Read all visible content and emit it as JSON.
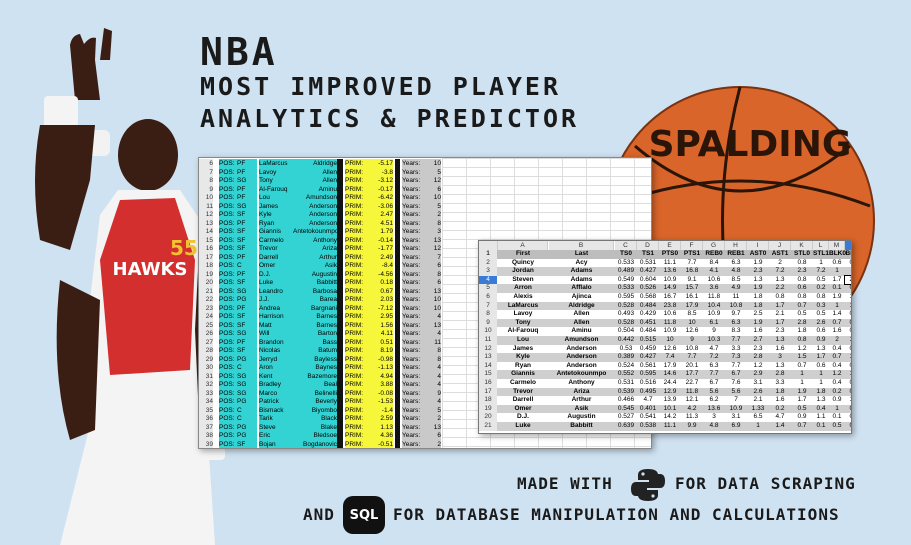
{
  "title": {
    "line1": "NBA",
    "line2": "MOST IMPROVED PLAYER",
    "line3": "ANALYTICS & PREDICTOR"
  },
  "footer": {
    "made_with": "MADE WITH",
    "data_scraping": "FOR DATA SCRAPING",
    "and": "AND",
    "sql_label": "SQL",
    "db_manip": "FOR DATABASE MANIPULATION AND CALCULATIONS",
    "python_icon": "python-logo-icon"
  },
  "ball": {
    "brand": "SPALDING",
    "color": "#d9652a"
  },
  "player": {
    "jersey_text": "HAWKS",
    "jersey_number": "55"
  },
  "sheet1": {
    "labels": {
      "pos": "POS:",
      "prim": "PRIM:",
      "years": "Years:"
    },
    "rows": [
      {
        "n": "6",
        "pos": "PF",
        "first": "LaMarcus",
        "last": "Aldridge",
        "prim": "-5.17",
        "years": "10"
      },
      {
        "n": "7",
        "pos": "PF",
        "first": "Lavoy",
        "last": "Allen",
        "prim": "-3.8",
        "years": "5"
      },
      {
        "n": "8",
        "pos": "SG",
        "first": "Tony",
        "last": "Allen",
        "prim": "-3.12",
        "years": "12"
      },
      {
        "n": "9",
        "pos": "PF",
        "first": "Al-Farouq",
        "last": "Aminu",
        "prim": "-0.17",
        "years": "6"
      },
      {
        "n": "10",
        "pos": "PF",
        "first": "Lou",
        "last": "Amundson",
        "prim": "-6.42",
        "years": "10"
      },
      {
        "n": "11",
        "pos": "SG",
        "first": "James",
        "last": "Anderson",
        "prim": "-3.06",
        "years": "5"
      },
      {
        "n": "12",
        "pos": "SF",
        "first": "Kyle",
        "last": "Anderson",
        "prim": "2.47",
        "years": "2"
      },
      {
        "n": "13",
        "pos": "PF",
        "first": "Ryan",
        "last": "Anderson",
        "prim": "4.51",
        "years": "8"
      },
      {
        "n": "14",
        "pos": "SF",
        "first": "Giannis",
        "last": "Antetokounmpo",
        "prim": "1.79",
        "years": "3"
      },
      {
        "n": "15",
        "pos": "SF",
        "first": "Carmelo",
        "last": "Anthony",
        "prim": "-0.14",
        "years": "13"
      },
      {
        "n": "16",
        "pos": "SF",
        "first": "Trevor",
        "last": "Ariza",
        "prim": "-1.77",
        "years": "12"
      },
      {
        "n": "17",
        "pos": "PF",
        "first": "Darrell",
        "last": "Arthur",
        "prim": "2.49",
        "years": "7"
      },
      {
        "n": "18",
        "pos": "C",
        "first": "Omer",
        "last": "Asik",
        "prim": "-8.4",
        "years": "6"
      },
      {
        "n": "19",
        "pos": "PF",
        "first": "D.J.",
        "last": "Augustin",
        "prim": "-4.56",
        "years": "8"
      },
      {
        "n": "20",
        "pos": "SF",
        "first": "Luke",
        "last": "Babbitt",
        "prim": "0.18",
        "years": "6"
      },
      {
        "n": "21",
        "pos": "SG",
        "first": "Leandro",
        "last": "Barbosa",
        "prim": "0.67",
        "years": "13"
      },
      {
        "n": "22",
        "pos": "PG",
        "first": "J.J.",
        "last": "Barea",
        "prim": "2.03",
        "years": "10"
      },
      {
        "n": "23",
        "pos": "PF",
        "first": "Andrea",
        "last": "Bargnani",
        "prim": "-7.12",
        "years": "10"
      },
      {
        "n": "24",
        "pos": "SF",
        "first": "Harrison",
        "last": "Barnes",
        "prim": "2.95",
        "years": "4"
      },
      {
        "n": "25",
        "pos": "SF",
        "first": "Matt",
        "last": "Barnes",
        "prim": "1.56",
        "years": "13"
      },
      {
        "n": "26",
        "pos": "SG",
        "first": "Will",
        "last": "Barton",
        "prim": "4.11",
        "years": "4"
      },
      {
        "n": "27",
        "pos": "PF",
        "first": "Brandon",
        "last": "Bass",
        "prim": "0.51",
        "years": "11"
      },
      {
        "n": "28",
        "pos": "SF",
        "first": "Nicolas",
        "last": "Batum",
        "prim": "8.19",
        "years": "8"
      },
      {
        "n": "29",
        "pos": "PG",
        "first": "Jerryd",
        "last": "Bayless",
        "prim": "-0.98",
        "years": "8"
      },
      {
        "n": "30",
        "pos": "C",
        "first": "Aron",
        "last": "Baynes",
        "prim": "-1.13",
        "years": "4"
      },
      {
        "n": "31",
        "pos": "SG",
        "first": "Kent",
        "last": "Bazemore",
        "prim": "4.94",
        "years": "4"
      },
      {
        "n": "32",
        "pos": "SG",
        "first": "Bradley",
        "last": "Beal",
        "prim": "3.88",
        "years": "4"
      },
      {
        "n": "33",
        "pos": "SG",
        "first": "Marco",
        "last": "Belinelli",
        "prim": "-0.08",
        "years": "9"
      },
      {
        "n": "34",
        "pos": "PG",
        "first": "Patrick",
        "last": "Beverly",
        "prim": "-1.53",
        "years": "4"
      },
      {
        "n": "35",
        "pos": "C",
        "first": "Bismack",
        "last": "Biyombo",
        "prim": "-1.4",
        "years": "5"
      },
      {
        "n": "36",
        "pos": "C",
        "first": "Tarik",
        "last": "Black",
        "prim": "2.59",
        "years": "2"
      },
      {
        "n": "37",
        "pos": "PG",
        "first": "Steve",
        "last": "Blake",
        "prim": "1.13",
        "years": "13"
      },
      {
        "n": "38",
        "pos": "PG",
        "first": "Eric",
        "last": "Bledsoe",
        "prim": "4.36",
        "years": "6"
      },
      {
        "n": "39",
        "pos": "SF",
        "first": "Bojan",
        "last": "Bogdanovic",
        "prim": "-0.51",
        "years": "2"
      }
    ]
  },
  "sheet2": {
    "columns": [
      "A",
      "B",
      "C",
      "D",
      "E",
      "F",
      "G",
      "H",
      "I",
      "J",
      "K",
      "L",
      "M",
      "N"
    ],
    "selected_column": "N",
    "header": [
      "First",
      "Last",
      "TS0",
      "TS1",
      "PTS0",
      "PTS1",
      "REB0",
      "REB1",
      "AST0",
      "AST1",
      "STL0",
      "STL1",
      "BLK0",
      "BLK1"
    ],
    "rows": [
      {
        "n": "2",
        "v": [
          "Quincy",
          "Acy",
          "0.533",
          "0.531",
          "11.1",
          "7.7",
          "8.4",
          "6.3",
          "1.9",
          "2",
          "0.8",
          "1",
          "0.6",
          "0.7"
        ]
      },
      {
        "n": "3",
        "v": [
          "Jordan",
          "Adams",
          "0.489",
          "0.427",
          "13.6",
          "16.8",
          "4.1",
          "4.8",
          "2.3",
          "7.2",
          "2.3",
          "7.2",
          "1",
          "0"
        ]
      },
      {
        "n": "4",
        "v": [
          "Steven",
          "Adams",
          "0.549",
          "0.604",
          "10.9",
          "9.1",
          "10.6",
          "8.5",
          "1.3",
          "1.3",
          "0.8",
          "0.5",
          "1.7",
          "2.3"
        ]
      },
      {
        "n": "5",
        "v": [
          "Arron",
          "Afflalo",
          "0.533",
          "0.526",
          "14.9",
          "15.7",
          "3.6",
          "4.9",
          "1.9",
          "2.2",
          "0.6",
          "0.2",
          "0.1",
          "0.1"
        ]
      },
      {
        "n": "6",
        "v": [
          "Alexis",
          "Ajinca",
          "0.595",
          "0.568",
          "16.7",
          "16.1",
          "11.8",
          "11",
          "1.8",
          "0.8",
          "0.8",
          "0.8",
          "1.9",
          "1.5"
        ]
      },
      {
        "n": "7",
        "v": [
          "LaMarcus",
          "Aldridge",
          "0.528",
          "0.484",
          "23.8",
          "17.9",
          "10.4",
          "10.8",
          "1.8",
          "1.7",
          "0.7",
          "0.3",
          "1",
          "1.6"
        ]
      },
      {
        "n": "8",
        "v": [
          "Lavoy",
          "Allen",
          "0.493",
          "0.429",
          "10.6",
          "8.5",
          "10.9",
          "9.7",
          "2.5",
          "2.1",
          "0.5",
          "0.5",
          "1.4",
          "0.9"
        ]
      },
      {
        "n": "9",
        "v": [
          "Tony",
          "Allen",
          "0.528",
          "0.451",
          "11.8",
          "10",
          "6.1",
          "6.3",
          "1.9",
          "1.7",
          "2.8",
          "2.6",
          "0.7",
          "0.4"
        ]
      },
      {
        "n": "10",
        "v": [
          "Al-Farouq",
          "Aminu",
          "0.504",
          "0.484",
          "10.9",
          "12.6",
          "9",
          "8.3",
          "1.6",
          "2.3",
          "1.8",
          "0.6",
          "1.6",
          "0.9"
        ]
      },
      {
        "n": "11",
        "v": [
          "Lou",
          "Amundson",
          "0.442",
          "0.515",
          "10",
          "9",
          "10.3",
          "7.7",
          "2.7",
          "1.3",
          "0.8",
          "0.9",
          "2",
          "1.3"
        ]
      },
      {
        "n": "12",
        "v": [
          "James",
          "Anderson",
          "0.53",
          "0.459",
          "12.6",
          "10.8",
          "4.7",
          "3.3",
          "2.3",
          "1.6",
          "1.2",
          "1.3",
          "0.4",
          "0.3"
        ]
      },
      {
        "n": "13",
        "v": [
          "Kyle",
          "Anderson",
          "0.389",
          "0.427",
          "7.4",
          "7.7",
          "7.2",
          "7.3",
          "2.8",
          "3",
          "1.5",
          "1.7",
          "0.7",
          "1.4"
        ]
      },
      {
        "n": "14",
        "v": [
          "Ryan",
          "Anderson",
          "0.524",
          "0.561",
          "17.9",
          "20.1",
          "6.3",
          "7.7",
          "1.2",
          "1.3",
          "0.7",
          "0.6",
          "0.4",
          "0.6"
        ]
      },
      {
        "n": "15",
        "v": [
          "Giannis",
          "Antetokounmpo",
          "0.552",
          "0.595",
          "14.6",
          "17.7",
          "7.7",
          "6.7",
          "2.9",
          "2.8",
          "1",
          "1",
          "1.2",
          "1.2"
        ]
      },
      {
        "n": "16",
        "v": [
          "Carmelo",
          "Anthony",
          "0.531",
          "0.516",
          "24.4",
          "22.7",
          "6.7",
          "7.6",
          "3.1",
          "3.3",
          "1",
          "1",
          "0.4",
          "0.6"
        ]
      },
      {
        "n": "17",
        "v": [
          "Trevor",
          "Ariza",
          "0.539",
          "0.495",
          "12.9",
          "11.8",
          "5.6",
          "5.6",
          "2.6",
          "1.8",
          "1.9",
          "1.8",
          "0.2",
          "0.3"
        ]
      },
      {
        "n": "18",
        "v": [
          "Darrell",
          "Arthur",
          "0.466",
          "4.7",
          "13.9",
          "12.1",
          "6.2",
          "7",
          "2.1",
          "1.6",
          "1.7",
          "1.3",
          "0.9",
          "1.4"
        ]
      },
      {
        "n": "19",
        "v": [
          "Omer",
          "Asik",
          "0.545",
          "0.401",
          "10.1",
          "4.2",
          "13.6",
          "10.9",
          "1.33",
          "0.2",
          "0.5",
          "0.4",
          "1",
          "0.8"
        ]
      },
      {
        "n": "20",
        "v": [
          "D.J.",
          "Augustin",
          "0.527",
          "0.541",
          "14.2",
          "11.3",
          "3",
          "3.1",
          "6.5",
          "4.7",
          "0.9",
          "1.1",
          "0.1",
          "0.1"
        ]
      },
      {
        "n": "21",
        "v": [
          "Luke",
          "Babbitt",
          "0.639",
          "0.538",
          "11.1",
          "9.9",
          "4.8",
          "6.9",
          "1",
          "1.4",
          "0.7",
          "0.1",
          "0.5",
          "0.4"
        ]
      }
    ]
  }
}
